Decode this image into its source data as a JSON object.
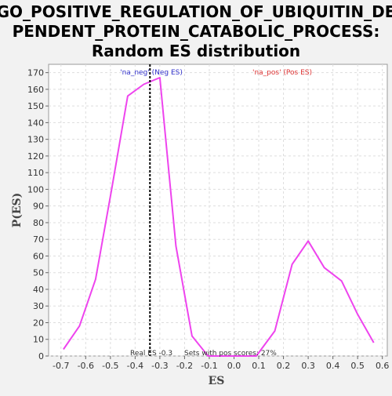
{
  "colors": {
    "page_background": "#f2f2f2",
    "plot_background": "#ffffff",
    "line": "#ee44ee",
    "neg_annotation": "#3333cc",
    "pos_annotation": "#dd3333",
    "real_es_marker": "#000000"
  },
  "chart_data": {
    "type": "line",
    "title_lines": [
      "GO_POSITIVE_REGULATION_OF_UBIQUITIN_DE",
      "PENDENT_PROTEIN_CATABOLIC_PROCESS:",
      "Random ES distribution"
    ],
    "xlabel": "ES",
    "ylabel": "P(ES)",
    "xlim": [
      -0.75,
      0.62
    ],
    "ylim": [
      0,
      175
    ],
    "x_ticks": [
      -0.7,
      -0.6,
      -0.5,
      -0.4,
      -0.3,
      -0.2,
      -0.1,
      0.0,
      0.1,
      0.2,
      0.3,
      0.4,
      0.5,
      0.6
    ],
    "x_tick_labels": [
      "-0.7",
      "-0.6",
      "-0.5",
      "-0.4",
      "-0.3",
      "-0.2",
      "-0.1",
      "0.0",
      "0.1",
      "0.2",
      "0.3",
      "0.4",
      "0.5",
      "0.6"
    ],
    "y_ticks": [
      0,
      10,
      20,
      30,
      40,
      50,
      60,
      70,
      80,
      90,
      100,
      110,
      120,
      130,
      140,
      150,
      160,
      170
    ],
    "y_tick_labels": [
      "0",
      "10",
      "20",
      "30",
      "40",
      "50",
      "60",
      "70",
      "80",
      "90",
      "100",
      "110",
      "120",
      "130",
      "140",
      "150",
      "160",
      "170"
    ],
    "grid": true,
    "series": [
      {
        "x": [
          -0.69,
          -0.625,
          -0.56,
          -0.495,
          -0.43,
          -0.365,
          -0.3,
          -0.235,
          -0.17,
          -0.105,
          -0.04,
          0.025,
          0.09,
          0.165,
          0.235,
          0.3,
          0.365,
          0.435,
          0.5,
          0.565
        ],
        "y": [
          4,
          18,
          46,
          100,
          156,
          163,
          167,
          66,
          12,
          0,
          0,
          0,
          0,
          15,
          55,
          69,
          53,
          45,
          25,
          8
        ]
      }
    ],
    "real_es": -0.34,
    "annotations": {
      "neg_label": "'na_neg' (Neg ES)",
      "pos_label": "'na_pos' (Pos ES)",
      "real_es_text": "Real ES -0.3",
      "pos_scores_text": "Sets with pos scores: 27%"
    }
  }
}
